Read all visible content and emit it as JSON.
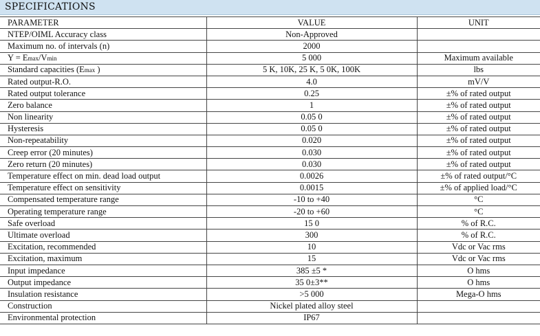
{
  "title": "SPECIFICATIONS",
  "headers": {
    "parameter": "PARAMETER",
    "value": "VALUE",
    "unit": "UNIT"
  },
  "rows": [
    {
      "p": "NTEP/OIML Accuracy class",
      "v": "Non-Approved",
      "u": ""
    },
    {
      "p": "Maximum no. of intervals (n)",
      "v": "2000",
      "u": ""
    },
    {
      "p": "Y = Emax/Vmin",
      "v": "5 000",
      "u": "Maximum available"
    },
    {
      "p": "Standard capacities (Emax    )",
      "v": "5 K, 10K, 25 K, 5 0K, 100K",
      "u": "lbs"
    },
    {
      "p": "Rated output-R.O.",
      "v": "4.0",
      "u": "mV/V"
    },
    {
      "p": "Rated output tolerance",
      "v": "0.25",
      "u": "±% of rated output"
    },
    {
      "p": "Zero balance",
      "v": "1",
      "u": "±% of rated output"
    },
    {
      "p": "Non linearity",
      "v": "0.05 0",
      "u": "±% of rated output"
    },
    {
      "p": "Hysteresis",
      "v": "0.05 0",
      "u": "±% of rated output"
    },
    {
      "p": "Non-repeatability",
      "v": "0.020",
      "u": "±% of rated output"
    },
    {
      "p": "Creep error (20 minutes)",
      "v": "0.030",
      "u": "±% of rated output"
    },
    {
      "p": "Zero return (20 minutes)",
      "v": "0.030",
      "u": "±% of rated output"
    },
    {
      "p": "Temperature effect on min. dead load output",
      "v": "0.0026",
      "u": "±% of rated output/°C"
    },
    {
      "p": "Temperature effect on sensitivity",
      "v": "0.0015",
      "u": "±% of applied load/°C"
    },
    {
      "p": "Compensated temperature range",
      "v": "-10 to +40",
      "u": "°C"
    },
    {
      "p": "Operating temperature range",
      "v": "-20 to +60",
      "u": "°C"
    },
    {
      "p": "Safe overload",
      "v": "15 0",
      "u": "% of R.C."
    },
    {
      "p": "Ultimate overload",
      "v": "300",
      "u": "% of R.C."
    },
    {
      "p": "Excitation, recommended",
      "v": "10",
      "u": "Vdc or Vac rms"
    },
    {
      "p": "Excitation, maximum",
      "v": "15",
      "u": "Vdc or Vac rms"
    },
    {
      "p": "Input impedance",
      "v": "385 ±5 *",
      "u": "O hms"
    },
    {
      "p": "Output impedance",
      "v": "35 0±3**",
      "u": "O hms"
    },
    {
      "p": "Insulation resistance",
      "v": ">5 000",
      "u": "Mega-O hms"
    },
    {
      "p": "Construction",
      "v": "Nickel plated alloy steel",
      "u": ""
    },
    {
      "p": "Environmental protection",
      "v": "IP67",
      "u": ""
    }
  ]
}
